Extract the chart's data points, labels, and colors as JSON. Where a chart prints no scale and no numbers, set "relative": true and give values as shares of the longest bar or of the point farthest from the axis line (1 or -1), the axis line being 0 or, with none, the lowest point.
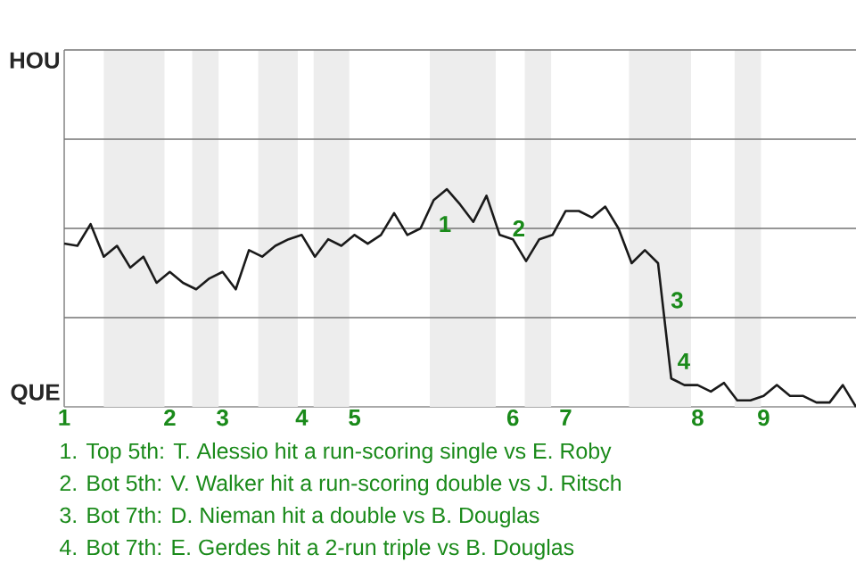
{
  "chart_data": {
    "type": "line",
    "relative": true,
    "categories": [
      "1",
      null,
      null,
      null,
      null,
      null,
      null,
      null,
      "2",
      null,
      null,
      null,
      "3",
      null,
      null,
      null,
      null,
      null,
      "4",
      null,
      null,
      null,
      "5",
      null,
      null,
      null,
      null,
      null,
      null,
      null,
      null,
      null,
      null,
      null,
      "6",
      null,
      null,
      null,
      "7",
      null,
      null,
      null,
      null,
      null,
      null,
      null,
      null,
      null,
      "8",
      null,
      null,
      null,
      null,
      "9",
      null,
      null,
      null,
      null,
      null,
      null,
      null
    ],
    "series": [
      {
        "color": "#1a1a1a",
        "values": [
          0.75,
          0.74,
          0.84,
          0.69,
          0.74,
          0.64,
          0.69,
          0.57,
          0.62,
          0.57,
          0.54,
          0.59,
          0.62,
          0.54,
          0.72,
          0.69,
          0.74,
          0.77,
          0.79,
          0.69,
          0.77,
          0.74,
          0.79,
          0.75,
          0.79,
          0.89,
          0.79,
          0.82,
          0.95,
          1,
          0.93,
          0.85,
          0.97,
          0.79,
          0.77,
          0.67,
          0.77,
          0.79,
          0.9,
          0.9,
          0.87,
          0.92,
          0.82,
          0.66,
          0.72,
          0.66,
          0.13,
          0.1,
          0.1,
          0.07,
          0.11,
          0.03,
          0.03,
          0.05,
          0.1,
          0.05,
          0.05,
          0.02,
          0.02,
          0.1,
          0
        ]
      }
    ],
    "ref_lines": [
      {
        "axis": "y",
        "value": 0.41,
        "color": "#737373"
      },
      {
        "axis": "y",
        "value": 0.82,
        "color": "#737373"
      },
      {
        "axis": "y",
        "value": 1.23,
        "color": "#737373"
      }
    ],
    "annotations": [
      "HOU",
      "QUE",
      "1",
      "2",
      "3",
      "4",
      "1. Top 5th: T. Alessio hit a run-scoring single vs E. Roby",
      "2. Bot 5th: V. Walker hit a run-scoring double vs J. Ritsch",
      "3. Bot 7th: D. Nieman hit a double vs B. Douglas",
      "4. Bot 7th: E. Gerdes hit a 2-run triple vs B. Douglas"
    ]
  }
}
